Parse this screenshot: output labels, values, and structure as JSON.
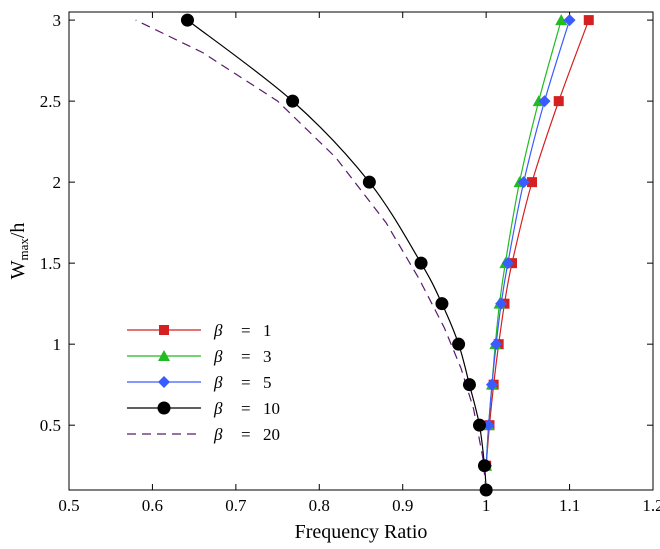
{
  "chart_data": {
    "type": "line",
    "title": "",
    "xlabel": "Frequency Ratio",
    "ylabel_main": "W",
    "ylabel_sub": "max",
    "ylabel_suffix": "/h",
    "xlim": [
      0.5,
      1.2
    ],
    "ylim": [
      0.1,
      3.05
    ],
    "xticks": [
      0.5,
      0.6,
      0.7,
      0.8,
      0.9,
      1,
      1.1,
      1.2
    ],
    "xtick_labels": [
      "0.5",
      "0.6",
      "0.7",
      "0.8",
      "0.9",
      "1",
      "1.1",
      "1.2"
    ],
    "yticks": [
      0.5,
      1,
      1.5,
      2,
      2.5,
      3
    ],
    "ytick_labels": [
      "0.5",
      "1",
      "1.5",
      "2",
      "2.5",
      "3"
    ],
    "grid": false,
    "legend_position": "bottom-left",
    "legend_symbol": "β",
    "series": [
      {
        "name": "β = 1",
        "legend_value": "1",
        "color": "#d42020",
        "marker": "square",
        "dashed": false,
        "x": [
          1.0,
          1.004,
          1.009,
          1.015,
          1.022,
          1.031,
          1.055,
          1.087,
          1.123
        ],
        "y": [
          0.25,
          0.5,
          0.75,
          1.0,
          1.25,
          1.5,
          2.0,
          2.5,
          3.0
        ]
      },
      {
        "name": "β = 3",
        "legend_value": "3",
        "color": "#22bb22",
        "marker": "triangle",
        "dashed": false,
        "x": [
          1.0,
          1.003,
          1.007,
          1.011,
          1.016,
          1.023,
          1.04,
          1.063,
          1.09
        ],
        "y": [
          0.25,
          0.5,
          0.75,
          1.0,
          1.25,
          1.5,
          2.0,
          2.5,
          3.0
        ]
      },
      {
        "name": "β = 5",
        "legend_value": "5",
        "color": "#3a5bff",
        "marker": "diamond",
        "dashed": false,
        "x": [
          1.0,
          1.003,
          1.007,
          1.012,
          1.018,
          1.026,
          1.045,
          1.07,
          1.1
        ],
        "y": [
          0.25,
          0.5,
          0.75,
          1.0,
          1.25,
          1.5,
          2.0,
          2.5,
          3.0
        ]
      },
      {
        "name": "β = 10",
        "legend_value": "10",
        "color": "#000000",
        "marker": "circle",
        "dashed": false,
        "x": [
          1.0,
          0.998,
          0.992,
          0.98,
          0.967,
          0.947,
          0.922,
          0.86,
          0.768,
          0.642
        ],
        "y": [
          0.1,
          0.25,
          0.5,
          0.75,
          1.0,
          1.25,
          1.5,
          2.0,
          2.5,
          3.0
        ]
      },
      {
        "name": "β = 20",
        "legend_value": "20",
        "color": "#5a1a6e",
        "marker": "none",
        "dashed": true,
        "x": [
          1.0,
          0.996,
          0.985,
          0.97,
          0.95,
          0.92,
          0.88,
          0.82,
          0.75,
          0.66,
          0.58
        ],
        "y": [
          0.1,
          0.3,
          0.6,
          0.85,
          1.1,
          1.4,
          1.75,
          2.15,
          2.5,
          2.8,
          3.0
        ]
      }
    ]
  }
}
